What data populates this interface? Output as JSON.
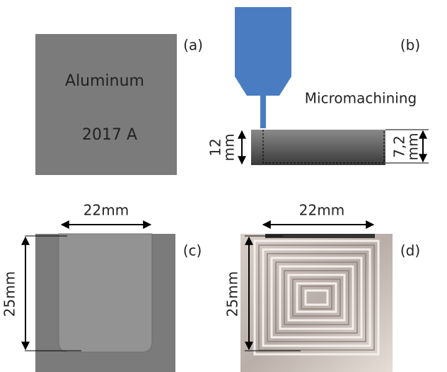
{
  "panels": [
    {
      "label": "(a)",
      "texts": [
        "Aluminum",
        "2017 A"
      ]
    },
    {
      "label": "(b)",
      "process": "Micromachining",
      "block_height": {
        "number": "12",
        "unit": "mm"
      },
      "pocket_depth": {
        "number": "7,2",
        "unit": "mm"
      }
    },
    {
      "label": "(c)",
      "width": "22mm",
      "height": "25mm"
    },
    {
      "label": "(d)",
      "width": "22mm",
      "height": "25mm"
    }
  ]
}
